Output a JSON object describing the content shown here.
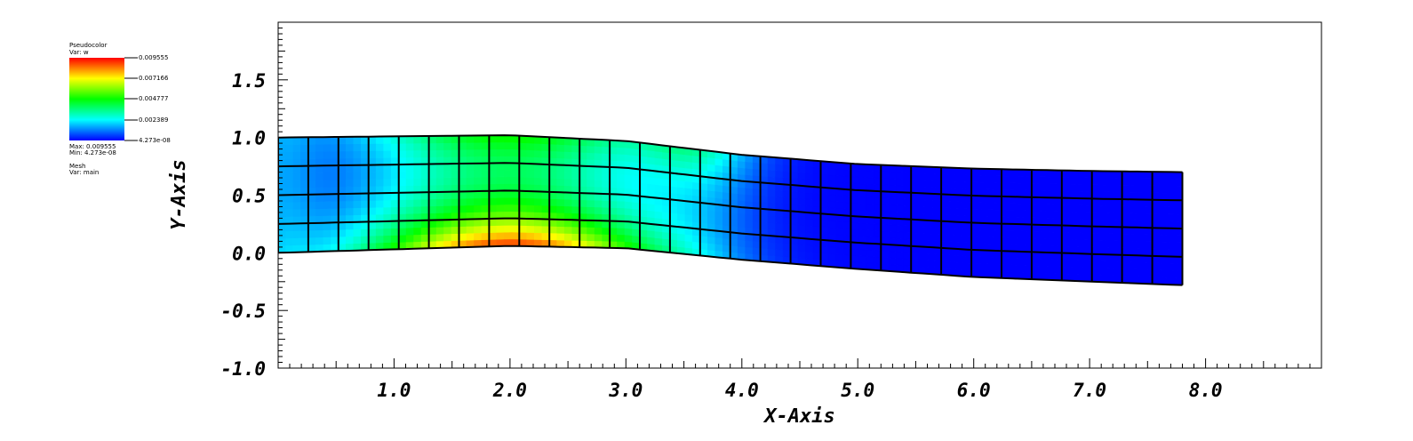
{
  "legend": {
    "plot_name": "Pseudocolor",
    "var_label": "Var: w",
    "ticks": [
      "0.009555",
      "0.007166",
      "0.004777",
      "0.002389",
      "4.273e-08"
    ],
    "max_label": "Max: 0.009555",
    "min_label": "Min: 4.273e-08",
    "mesh_name": "Mesh",
    "mesh_var_label": "Var: main",
    "colormap": [
      "#ff0000",
      "#ffff00",
      "#00ff00",
      "#00ffff",
      "#0000ff"
    ]
  },
  "chart_data": {
    "type": "heatmap",
    "xlabel": "X-Axis",
    "ylabel": "Y-Axis",
    "xlim": [
      0,
      9.0
    ],
    "ylim": [
      -1.0,
      2.0
    ],
    "x_ticks": [
      {
        "value": 1.0,
        "label": "1.0"
      },
      {
        "value": 2.0,
        "label": "2.0"
      },
      {
        "value": 3.0,
        "label": "3.0"
      },
      {
        "value": 4.0,
        "label": "4.0"
      },
      {
        "value": 5.0,
        "label": "5.0"
      },
      {
        "value": 6.0,
        "label": "6.0"
      },
      {
        "value": 7.0,
        "label": "7.0"
      },
      {
        "value": 8.0,
        "label": "8.0"
      }
    ],
    "y_ticks": [
      {
        "value": -1.0,
        "label": "-1.0"
      },
      {
        "value": -0.5,
        "label": "-0.5"
      },
      {
        "value": 0.0,
        "label": "0.0"
      },
      {
        "value": 0.5,
        "label": "0.5"
      },
      {
        "value": 1.0,
        "label": "1.0"
      },
      {
        "value": 1.5,
        "label": "1.5"
      }
    ],
    "mesh": {
      "x_range": [
        0.0,
        7.8
      ],
      "columns": 30,
      "rows": 4,
      "bottom_edge": [
        [
          0.0,
          0.0
        ],
        [
          1.0,
          0.03
        ],
        [
          2.0,
          0.06
        ],
        [
          3.0,
          0.04
        ],
        [
          4.0,
          -0.06
        ],
        [
          5.0,
          -0.14
        ],
        [
          6.0,
          -0.21
        ],
        [
          7.0,
          -0.25
        ],
        [
          7.8,
          -0.28
        ]
      ],
      "top_edge": [
        [
          0.0,
          1.0
        ],
        [
          1.0,
          1.01
        ],
        [
          2.0,
          1.02
        ],
        [
          3.0,
          0.97
        ],
        [
          4.0,
          0.85
        ],
        [
          5.0,
          0.77
        ],
        [
          6.0,
          0.73
        ],
        [
          7.0,
          0.71
        ],
        [
          7.8,
          0.7
        ]
      ]
    },
    "value_range": [
      4.273e-08,
      0.009555
    ]
  }
}
